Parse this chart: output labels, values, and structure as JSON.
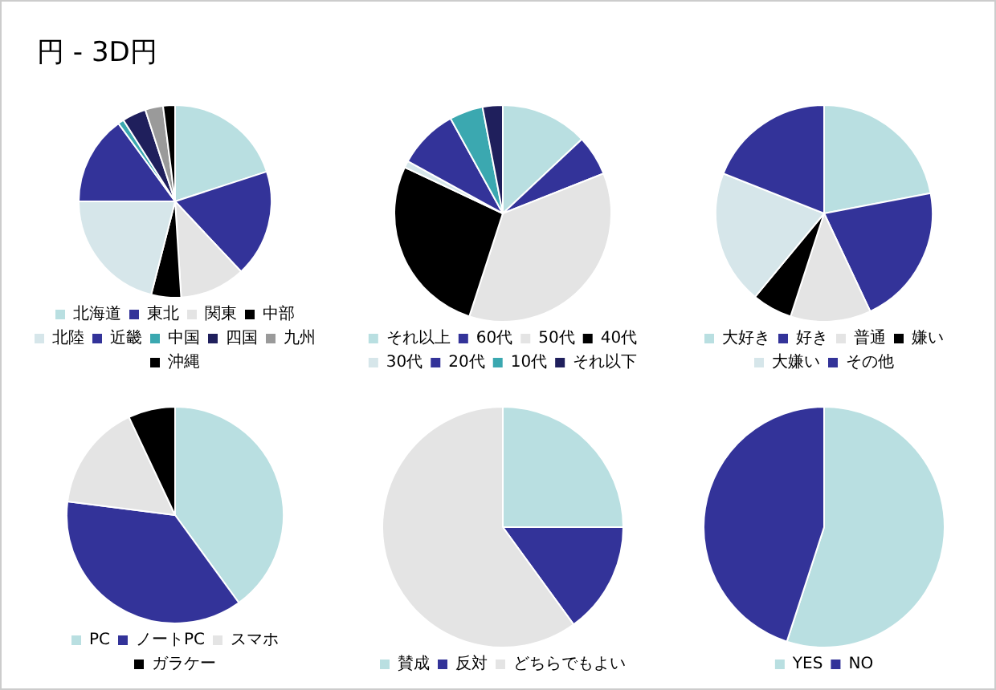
{
  "chart_data": [
    {
      "type": "pie",
      "title": "円 - 3D円",
      "categories": [
        "北海道",
        "東北",
        "関東",
        "中部",
        "北陸",
        "近畿",
        "中国",
        "四国",
        "九州",
        "沖縄"
      ],
      "values": [
        20,
        18,
        11,
        5,
        21,
        15,
        1,
        4,
        3,
        2
      ],
      "colors": [
        "#b9dfe1",
        "#333399",
        "#e4e4e4",
        "#000000",
        "#d6e6ea",
        "#333399",
        "#3ba8b0",
        "#1f1f5c",
        "#9a9a9a",
        "#000000"
      ],
      "legend": "bottom"
    },
    {
      "type": "pie",
      "categories": [
        "それ以上",
        "60代",
        "50代",
        "40代",
        "30代",
        "20代",
        "10代",
        "それ以下"
      ],
      "values": [
        13,
        6,
        36,
        27,
        1,
        9,
        5,
        3
      ],
      "colors": [
        "#b9dfe1",
        "#333399",
        "#e4e4e4",
        "#000000",
        "#d6e6ea",
        "#333399",
        "#3ba8b0",
        "#1f1f5c"
      ],
      "legend": "bottom"
    },
    {
      "type": "pie",
      "categories": [
        "大好き",
        "好き",
        "普通",
        "嫌い",
        "大嫌い",
        "その他"
      ],
      "values": [
        22,
        21,
        12,
        6,
        20,
        19
      ],
      "colors": [
        "#b9dfe1",
        "#333399",
        "#e4e4e4",
        "#000000",
        "#d6e6ea",
        "#333399"
      ],
      "legend": "bottom"
    },
    {
      "type": "pie",
      "categories": [
        "PC",
        "ノートPC",
        "スマホ",
        "ガラケー"
      ],
      "values": [
        40,
        37,
        16,
        7
      ],
      "colors": [
        "#b9dfe1",
        "#333399",
        "#e4e4e4",
        "#000000"
      ],
      "legend": "bottom"
    },
    {
      "type": "pie",
      "categories": [
        "賛成",
        "反対",
        "どちらでもよい"
      ],
      "values": [
        25,
        15,
        60
      ],
      "colors": [
        "#b9dfe1",
        "#333399",
        "#e4e4e4"
      ],
      "legend": "bottom"
    },
    {
      "type": "pie",
      "categories": [
        "YES",
        "NO"
      ],
      "values": [
        55,
        45
      ],
      "colors": [
        "#b9dfe1",
        "#333399"
      ],
      "legend": "bottom"
    }
  ]
}
